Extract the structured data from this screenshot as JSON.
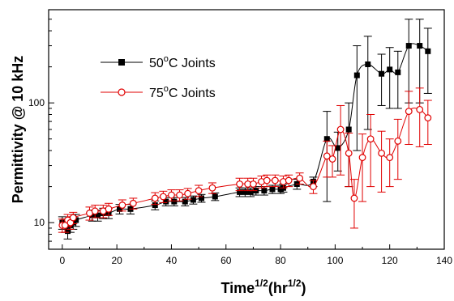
{
  "chart_data": {
    "type": "line",
    "title": "",
    "xlabel": {
      "base": "Time",
      "sup1": "1/2",
      "mid": "(hr",
      "sup2": "1/2",
      "end": ")"
    },
    "ylabel": "Permittivity @ 10 kHz",
    "xlim": [
      -5,
      140
    ],
    "ylim": [
      6,
      600
    ],
    "yscale": "log",
    "x_ticks": [
      0,
      20,
      40,
      60,
      80,
      100,
      120,
      140
    ],
    "y_ticks": [
      10,
      100
    ],
    "grid": false,
    "legend": "top-left",
    "series": [
      {
        "name_parts": {
          "pre": "50",
          "sup": "o",
          "post": "C Joints"
        },
        "color": "#000000",
        "marker": "filled-square",
        "x": [
          0,
          1,
          2,
          3,
          4,
          5,
          11,
          13,
          15,
          17,
          21,
          25,
          34,
          38,
          41,
          45,
          48,
          51,
          56,
          65,
          67,
          69,
          71,
          74,
          77,
          80,
          81,
          86,
          92,
          97,
          101,
          105,
          108,
          112,
          117,
          120,
          123,
          127,
          131,
          134
        ],
        "y": [
          10,
          9.5,
          8.5,
          9.5,
          10,
          10.5,
          11.5,
          11.5,
          12,
          12,
          13,
          13,
          14,
          15,
          15,
          15,
          15.5,
          16,
          16.5,
          18,
          18,
          18,
          18.5,
          18.5,
          19,
          19,
          19.5,
          21,
          22,
          50,
          42,
          60,
          170,
          210,
          175,
          190,
          180,
          300,
          300,
          270
        ],
        "err": [
          1.2,
          1.2,
          1.2,
          1.2,
          1.2,
          1.2,
          1.2,
          1.2,
          1.2,
          1.2,
          1.2,
          1.2,
          1.2,
          1.2,
          1.2,
          1.2,
          1.2,
          1.2,
          1.2,
          1.5,
          1.5,
          1.5,
          1.5,
          1.5,
          1.5,
          1.5,
          1.5,
          2,
          2,
          35,
          15,
          40,
          130,
          150,
          80,
          100,
          90,
          200,
          200,
          150
        ]
      },
      {
        "name_parts": {
          "pre": "75",
          "sup": "o",
          "post": "C Joints"
        },
        "color": "#e00000",
        "marker": "open-circle",
        "x": [
          0,
          1,
          2,
          3,
          4,
          10,
          12,
          15,
          17,
          22,
          26,
          34,
          37,
          40,
          43,
          46,
          50,
          55,
          65,
          68,
          70,
          73,
          75,
          78,
          81,
          83,
          87,
          92,
          97,
          99,
          102,
          105,
          107,
          110,
          113,
          117,
          120,
          123,
          127,
          131,
          134
        ],
        "y": [
          9.5,
          9.5,
          10.5,
          10,
          11,
          12,
          12.5,
          12.5,
          13,
          14,
          14.5,
          16,
          16.5,
          17,
          17,
          17.5,
          18.5,
          19.5,
          21,
          21,
          21,
          22,
          22.5,
          22.5,
          22,
          22.5,
          23.5,
          20,
          36,
          34,
          60,
          38,
          16,
          35,
          50,
          38,
          35,
          48,
          85,
          88,
          75
        ],
        "err": [
          1.2,
          1.2,
          1.2,
          1.2,
          1.2,
          1.5,
          1.5,
          1.5,
          1.5,
          1.5,
          1.5,
          1.8,
          1.8,
          1.8,
          1.8,
          1.8,
          2,
          2,
          2.5,
          2.5,
          2.5,
          2.5,
          2.5,
          2.5,
          2.5,
          2.5,
          2.5,
          2.5,
          12,
          10,
          35,
          18,
          7,
          20,
          30,
          20,
          15,
          25,
          40,
          45,
          30
        ]
      }
    ]
  }
}
